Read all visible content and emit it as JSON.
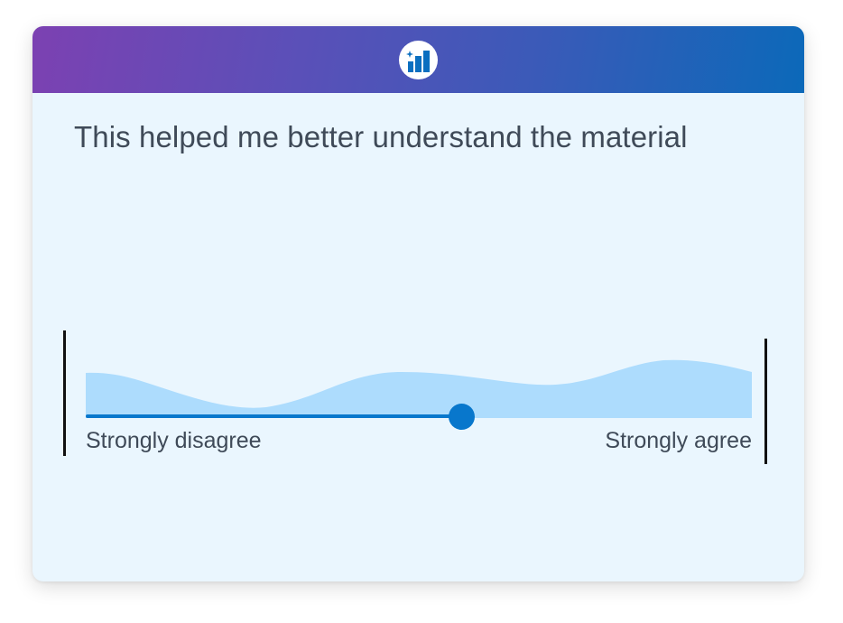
{
  "header": {
    "logo_icon": "bar-chart-sparkle-icon",
    "gradient_start": "#7c41b2",
    "gradient_end": "#0b69b9"
  },
  "question": {
    "text": "This helped me better understand the material"
  },
  "scale": {
    "min_label": "Strongly disagree",
    "max_label": "Strongly agree",
    "value": 0.565,
    "accent_color": "#0877cc",
    "distribution_color": "#addcfd"
  }
}
